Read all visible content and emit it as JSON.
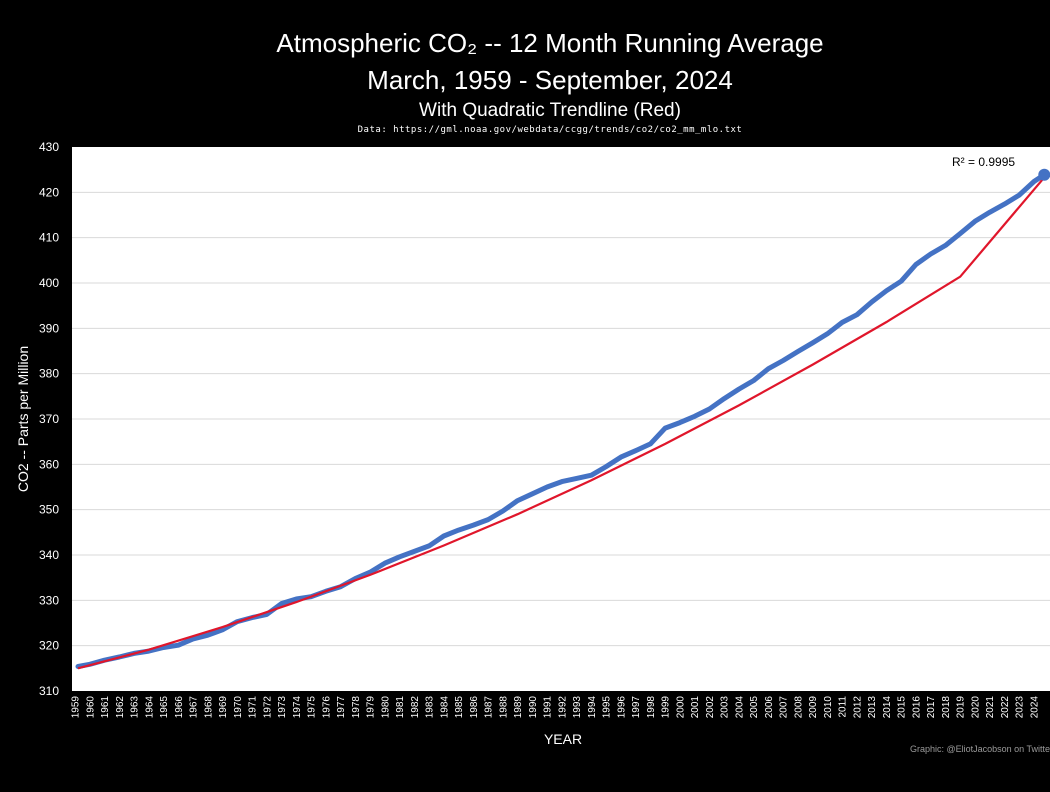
{
  "title_line1": "Atmospheric CO₂ -- 12 Month Running Average",
  "title_line2": "March, 1959 - September, 2024",
  "subtitle": "With Quadratic Trendline (Red)",
  "source": "Data: https://gml.noaa.gov/webdata/ccgg/trends/co2/co2_mm_mlo.txt",
  "credit": "Graphic: @EliotJacobson on Twitte",
  "colors": {
    "background": "#000000",
    "plot_area": "#ffffff",
    "data_line": "#4472c4",
    "trend_line": "#e0162b",
    "grid": "#d9d9d9"
  },
  "chart_data": {
    "type": "line",
    "title": "Atmospheric CO₂ -- 12 Month Running Average",
    "subtitle": "With Quadratic Trendline (Red)",
    "xlabel": "YEAR",
    "ylabel": "CO2 -- Parts per Million",
    "ylim": [
      310,
      430
    ],
    "yticks": [
      310,
      320,
      330,
      340,
      350,
      360,
      370,
      380,
      390,
      400,
      410,
      420,
      430
    ],
    "grid": true,
    "annotation": "R² = 0.9995",
    "categories": [
      "1959",
      "1960",
      "1961",
      "1962",
      "1963",
      "1964",
      "1965",
      "1966",
      "1967",
      "1968",
      "1969",
      "1970",
      "1971",
      "1972",
      "1973",
      "1974",
      "1975",
      "1976",
      "1977",
      "1978",
      "1979",
      "1980",
      "1981",
      "1982",
      "1983",
      "1984",
      "1985",
      "1986",
      "1987",
      "1988",
      "1989",
      "1990",
      "1991",
      "1992",
      "1993",
      "1994",
      "1995",
      "1996",
      "1997",
      "1998",
      "1999",
      "2000",
      "2001",
      "2002",
      "2003",
      "2004",
      "2005",
      "2006",
      "2007",
      "2008",
      "2009",
      "2010",
      "2011",
      "2012",
      "2013",
      "2014",
      "2015",
      "2016",
      "2017",
      "2018",
      "2019",
      "2020",
      "2021",
      "2022",
      "2023",
      "2024"
    ],
    "series": [
      {
        "name": "12 Month Running Average",
        "x": [
          1959.2,
          1960,
          1961,
          1962,
          1963,
          1964,
          1965,
          1966,
          1967,
          1968,
          1969,
          1970,
          1971,
          1972,
          1973,
          1974,
          1975,
          1976,
          1977,
          1978,
          1979,
          1980,
          1981,
          1982,
          1983,
          1984,
          1985,
          1986,
          1987,
          1988,
          1989,
          1990,
          1991,
          1992,
          1993,
          1994,
          1995,
          1996,
          1997,
          1998,
          1999,
          2000,
          2001,
          2002,
          2003,
          2004,
          2005,
          2006,
          2007,
          2008,
          2009,
          2010,
          2011,
          2012,
          2013,
          2014,
          2015,
          2016,
          2017,
          2018,
          2019,
          2020,
          2021,
          2022,
          2023,
          2024,
          2024.7
        ],
        "values": [
          315.4,
          315.9,
          316.8,
          317.5,
          318.3,
          318.8,
          319.6,
          320.1,
          321.5,
          322.3,
          323.5,
          325.3,
          326.2,
          326.9,
          329.3,
          330.3,
          330.8,
          332.0,
          333.0,
          334.8,
          336.2,
          338.2,
          339.6,
          340.8,
          342.0,
          344.2,
          345.5,
          346.6,
          347.8,
          349.7,
          352.0,
          353.5,
          355.0,
          356.2,
          356.9,
          357.6,
          359.5,
          361.6,
          363.0,
          364.5,
          368.0,
          369.2,
          370.6,
          372.2,
          374.5,
          376.6,
          378.5,
          381.1,
          382.9,
          384.9,
          386.8,
          388.8,
          391.3,
          393.0,
          395.8,
          398.3,
          400.4,
          404.1,
          406.4,
          408.3,
          410.9,
          413.6,
          415.6,
          417.4,
          419.4,
          422.4,
          423.9
        ]
      },
      {
        "name": "Quadratic Trendline",
        "x": [
          1959.2,
          1964,
          1969,
          1974,
          1979,
          1984,
          1989,
          1994,
          1999,
          2004,
          2009,
          2014,
          2019,
          2024.7
        ],
        "values": [
          315.0,
          319.1,
          324.1,
          329.6,
          335.6,
          342.1,
          349.0,
          356.5,
          364.5,
          373.0,
          382.0,
          391.4,
          401.4,
          423.3
        ]
      }
    ]
  }
}
